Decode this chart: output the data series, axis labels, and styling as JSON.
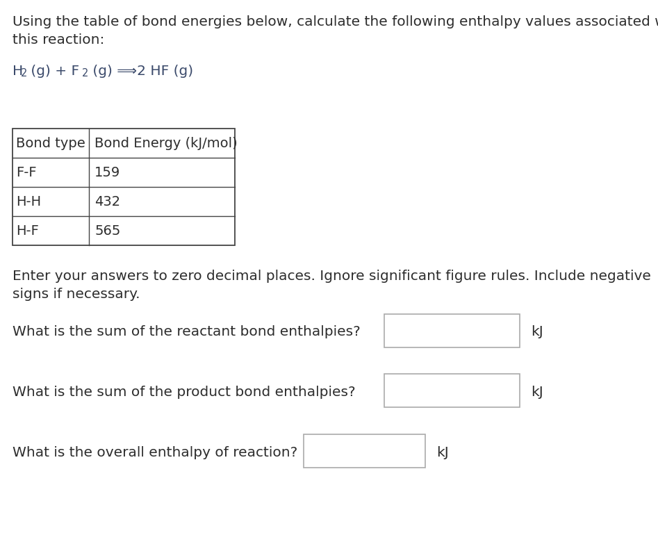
{
  "background_color": "#ffffff",
  "title_line1": "Using the table of bond energies below, calculate the following enthalpy values associated with",
  "title_line2": "this reaction:",
  "text_color": "#3b4a6b",
  "normal_text_color": "#2d2d2d",
  "table_headers": [
    "Bond type",
    "Bond Energy (kJ/mol)"
  ],
  "table_rows": [
    [
      "F-F",
      "159"
    ],
    [
      "H-H",
      "432"
    ],
    [
      "H-F",
      "565"
    ]
  ],
  "instructions_line1": "Enter your answers to zero decimal places. Ignore significant figure rules. Include negative",
  "instructions_line2": "signs if necessary.",
  "questions": [
    "What is the sum of the reactant bond enthalpies?",
    "What is the sum of the product bond enthalpies?",
    "What is the overall enthalpy of reaction?"
  ],
  "kj_label": "kJ",
  "font_size_main": 14.5,
  "font_size_reaction": 14.5,
  "font_size_table_header": 14,
  "font_size_table_data": 14,
  "font_size_instructions": 14.5,
  "font_size_questions": 14.5,
  "reaction_parts": [
    "H",
    "2",
    " (g) + F",
    "2",
    " (g) ⟹2 HF (g)"
  ]
}
